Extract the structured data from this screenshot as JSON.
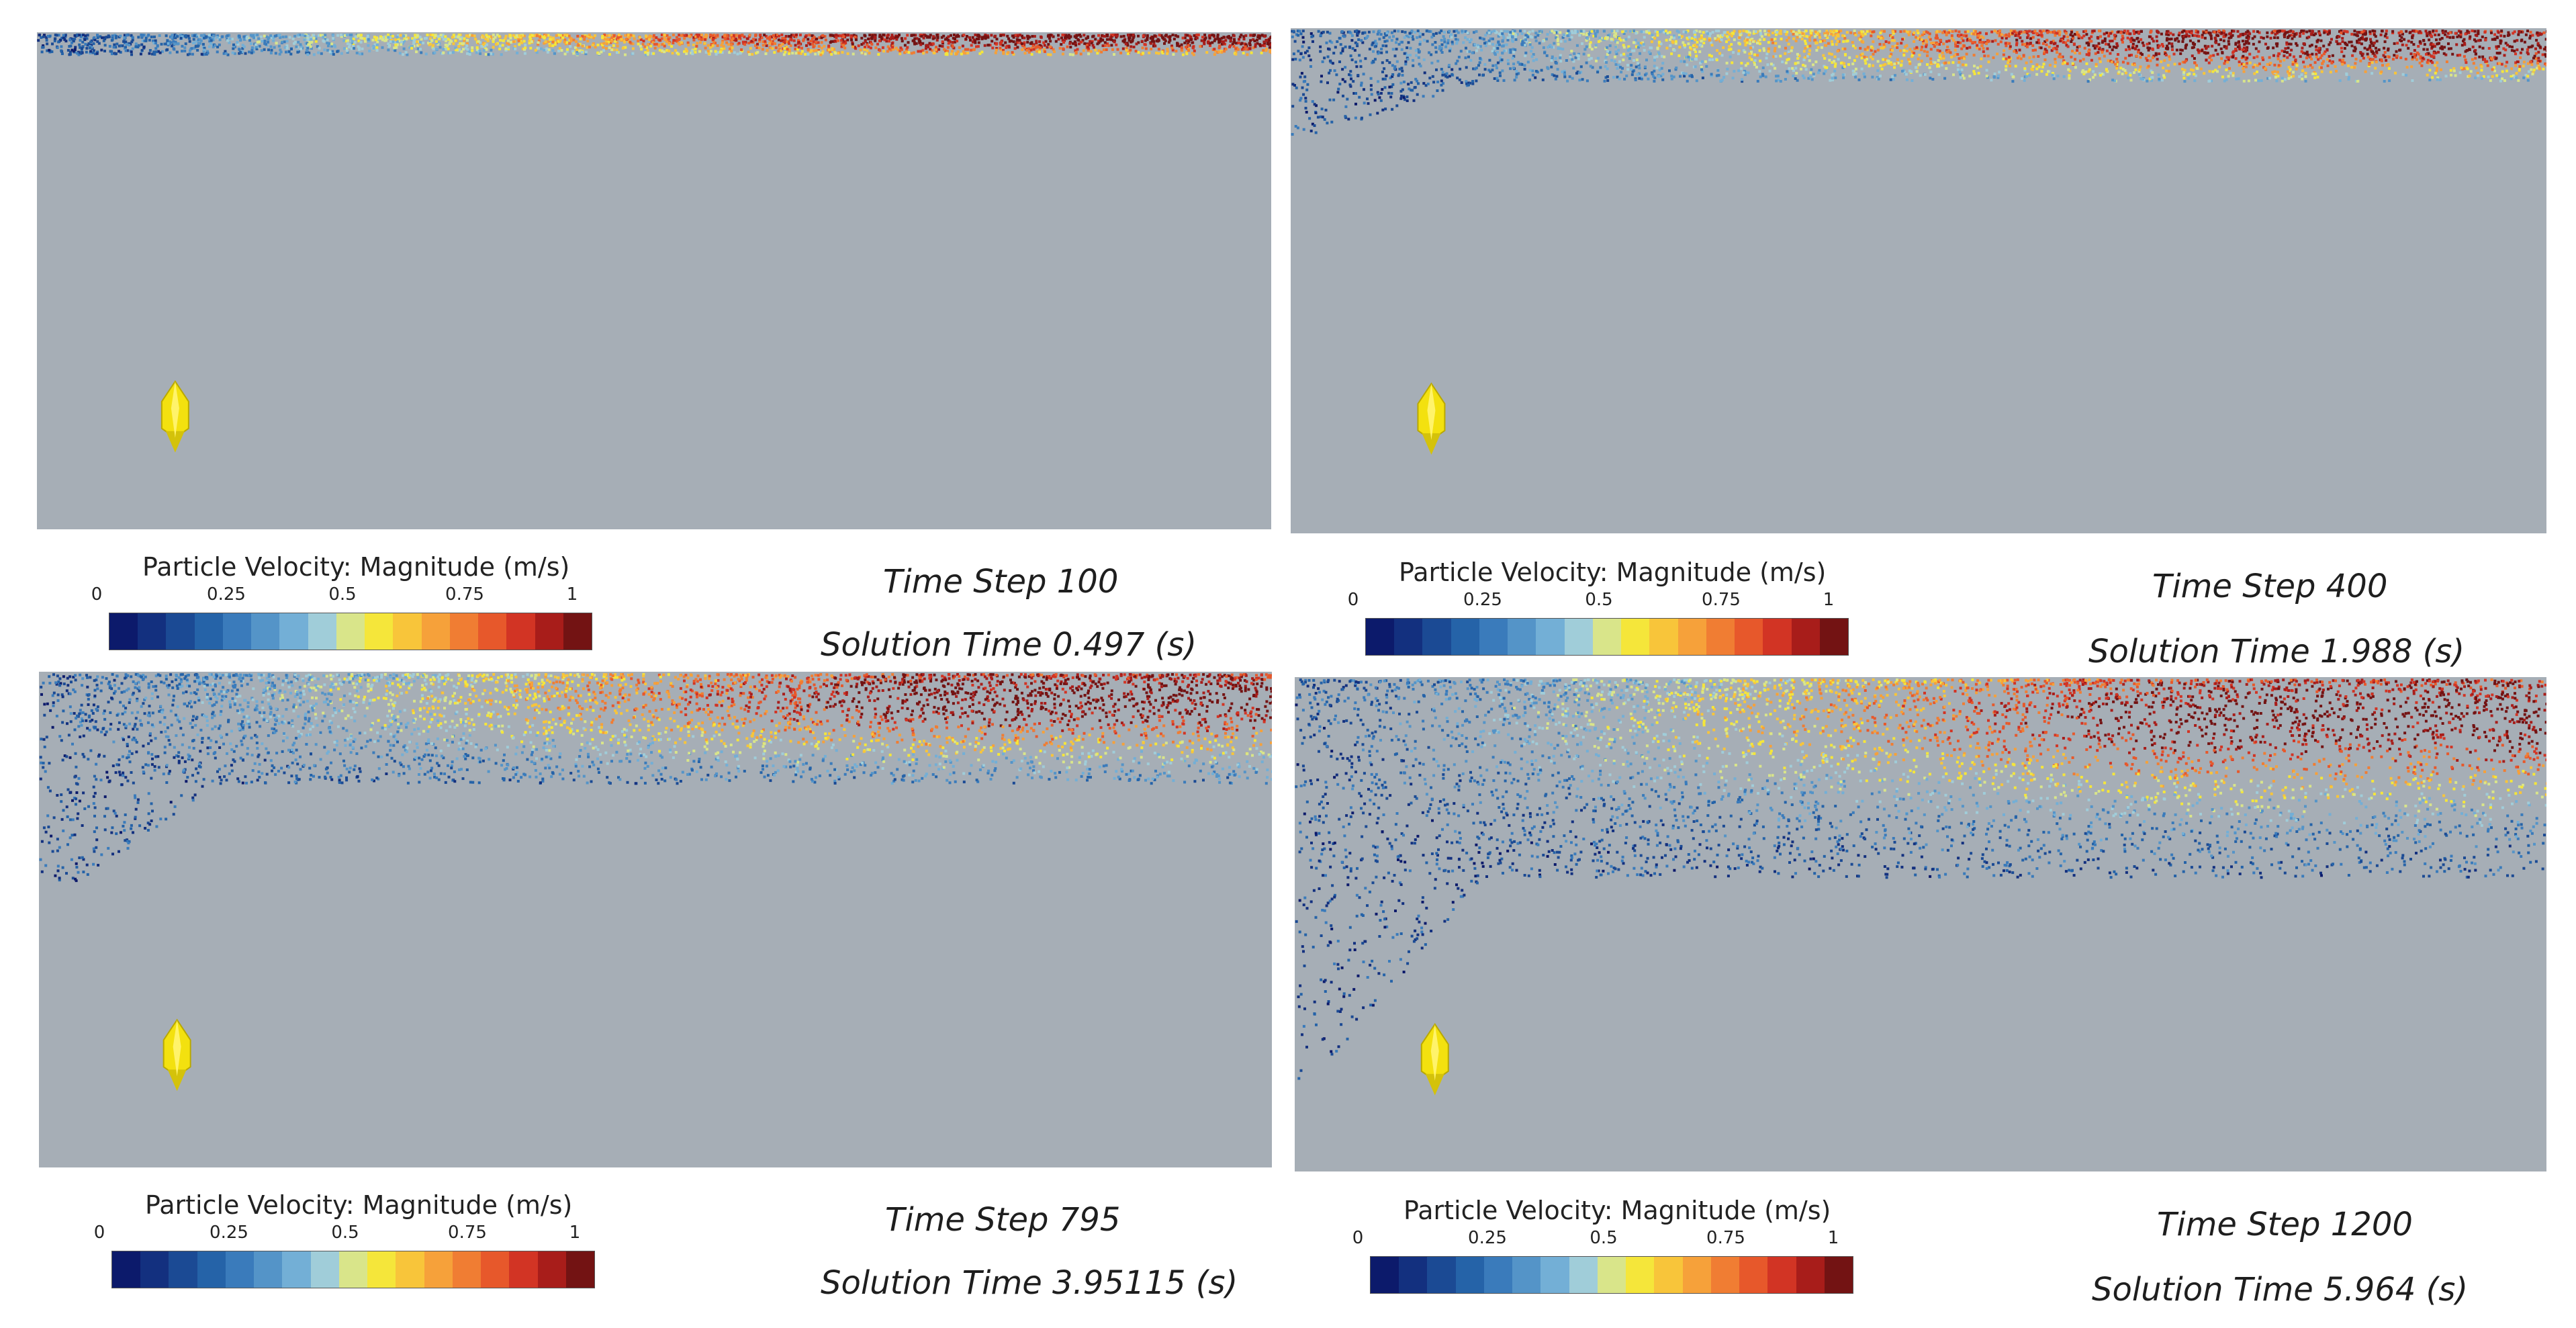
{
  "legend": {
    "title": "Particle Velocity: Magnitude (m/s)",
    "ticks": [
      "0",
      "0.25",
      "0.5",
      "0.75",
      "1"
    ],
    "colormap": [
      "#0c1a6b",
      "#13307f",
      "#1b4a94",
      "#2563a8",
      "#3a7bbb",
      "#5494c8",
      "#73afd6",
      "#a0cdd9",
      "#d9e58a",
      "#f5e63a",
      "#f8c53a",
      "#f6a13a",
      "#f07d33",
      "#e7582b",
      "#d23424",
      "#a81d1a",
      "#731313"
    ]
  },
  "panels": [
    {
      "time_step": "Time Step 100",
      "solution_time": "Solution Time 0.497 (s)"
    },
    {
      "time_step": "Time Step 400",
      "solution_time": "Solution Time 1.988 (s)"
    },
    {
      "time_step": "Time Step 795",
      "solution_time": "Solution Time 3.95115 (s)"
    },
    {
      "time_step": "Time Step 1200",
      "solution_time": "Solution Time 5.964 (s)"
    }
  ]
}
